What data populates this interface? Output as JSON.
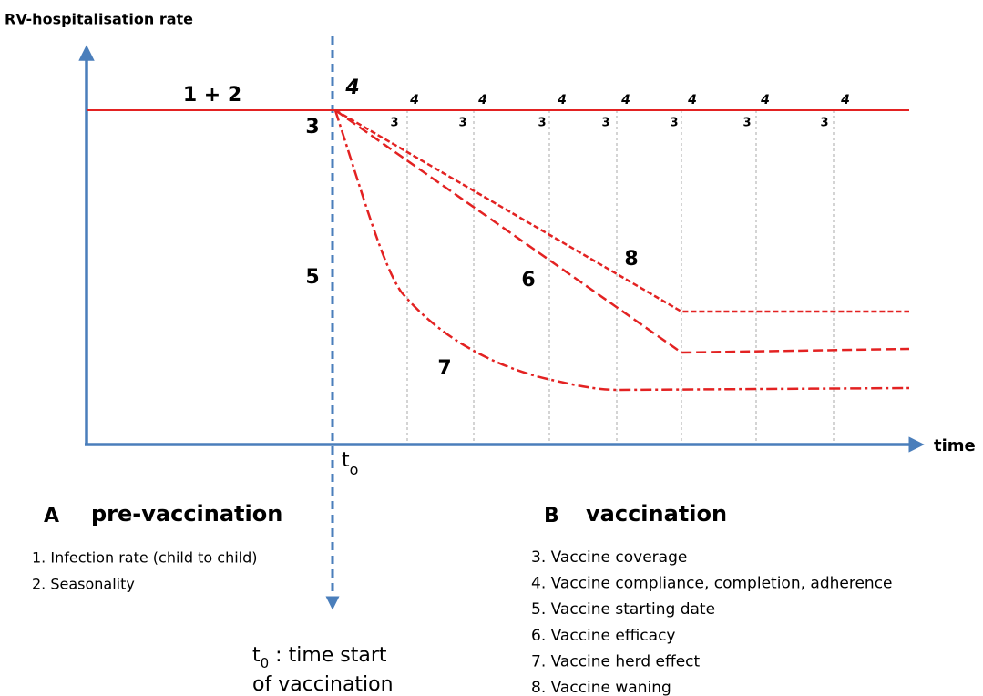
{
  "y_axis_label": "RV-hospitalisation rate",
  "x_axis_label": "time",
  "t_marker": {
    "main": "t",
    "sub": "o"
  },
  "curve_labels": {
    "base": "1 + 2",
    "start_4": "4",
    "start_3": "3",
    "start_5": "5",
    "efficacy": "6",
    "herd": "7",
    "waning": "8"
  },
  "period_labels": {
    "threes": [
      "3",
      "3",
      "3",
      "3",
      "3",
      "3",
      "3"
    ],
    "fours": [
      "4",
      "4",
      "4",
      "4",
      "4",
      "4",
      "4"
    ]
  },
  "section_a": {
    "letter": "A",
    "title": "pre-vaccination",
    "items": [
      "1. Infection rate (child to child)",
      "2. Seasonality"
    ]
  },
  "section_b": {
    "letter": "B",
    "title": "vaccination",
    "items": [
      "3.  Vaccine coverage",
      "4.  Vaccine compliance, completion, adherence",
      "5.  Vaccine starting date",
      "6.  Vaccine efficacy",
      "7.  Vaccine herd effect",
      "8.  Vaccine waning"
    ]
  },
  "t0_note": {
    "main": "t",
    "sub": "0",
    "line1": " : time start",
    "line2": "of vaccination"
  }
}
